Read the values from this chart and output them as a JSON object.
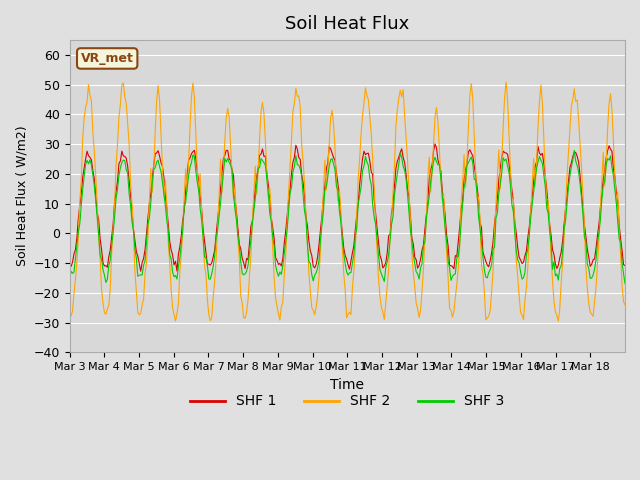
{
  "title": "Soil Heat Flux",
  "xlabel": "Time",
  "ylabel": "Soil Heat Flux ( W/m2)",
  "ylim": [
    -40,
    65
  ],
  "yticks": [
    -40,
    -30,
    -20,
    -10,
    0,
    10,
    20,
    30,
    40,
    50,
    60
  ],
  "x_labels": [
    "Mar 3",
    "Mar 4",
    "Mar 5",
    "Mar 6",
    "Mar 7",
    "Mar 8",
    "Mar 9",
    "Mar 10",
    "Mar 11",
    "Mar 12",
    "Mar 13",
    "Mar 14",
    "Mar 15",
    "Mar 16",
    "Mar 17",
    "Mar 18"
  ],
  "colors": {
    "SHF 1": "#dd0000",
    "SHF 2": "#ffa500",
    "SHF 3": "#00cc00"
  },
  "annotation_text": "VR_met",
  "annotation_color": "#8B4513",
  "legend_labels": [
    "SHF 1",
    "SHF 2",
    "SHF 3"
  ]
}
